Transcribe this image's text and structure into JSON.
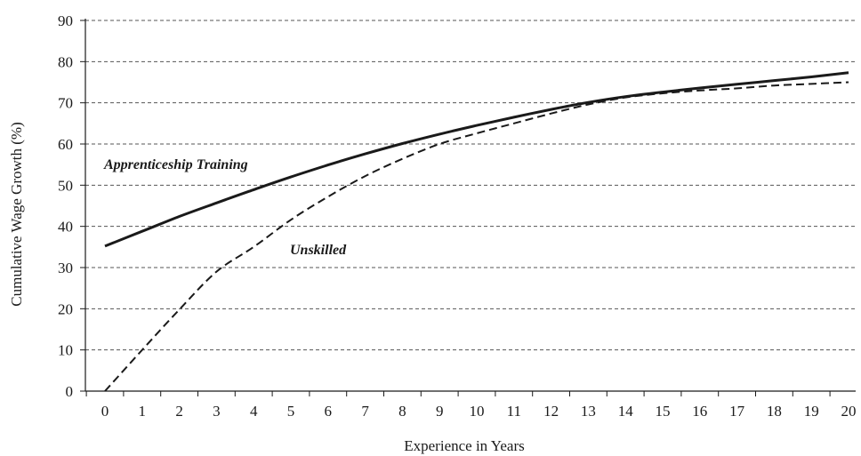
{
  "chart_data": {
    "type": "line",
    "xlabel": "Experience in Years",
    "ylabel": "Cumulative Wage Growth (%)",
    "xlim": [
      0,
      20
    ],
    "ylim": [
      0,
      90
    ],
    "grid": "horizontal dashed",
    "legend": "inline labels",
    "x_ticks": [
      "0",
      "1",
      "2",
      "3",
      "4",
      "5",
      "6",
      "7",
      "8",
      "9",
      "10",
      "11",
      "12",
      "13",
      "14",
      "15",
      "16",
      "17",
      "18",
      "19",
      "20"
    ],
    "y_ticks": [
      "0",
      "10",
      "20",
      "30",
      "40",
      "50",
      "60",
      "70",
      "80",
      "90"
    ],
    "x": [
      0,
      1,
      2,
      3,
      4,
      5,
      6,
      7,
      8,
      9,
      10,
      11,
      12,
      13,
      14,
      15,
      16,
      17,
      18,
      19,
      20
    ],
    "series": [
      {
        "name": "Apprenticeship Training",
        "style": "solid",
        "values": [
          35.2,
          38.8,
          42.4,
          45.7,
          48.9,
          52.0,
          54.9,
          57.6,
          60.1,
          62.4,
          64.5,
          66.5,
          68.4,
          70.1,
          71.5,
          72.6,
          73.6,
          74.5,
          75.4,
          76.3,
          77.3
        ]
      },
      {
        "name": "Unskilled",
        "style": "dashed",
        "values": [
          0.0,
          10.0,
          19.8,
          29.0,
          35.0,
          41.6,
          47.2,
          52.2,
          56.4,
          60.0,
          62.6,
          65.0,
          67.4,
          69.6,
          71.3,
          72.3,
          73.0,
          73.5,
          74.2,
          74.6,
          75.0
        ]
      }
    ],
    "annotations": [
      {
        "text": "Apprenticeship Training",
        "series": 0
      },
      {
        "text": "Unskilled",
        "series": 1
      }
    ]
  },
  "colors": {
    "line": "#1a1a1a",
    "grid": "#555555",
    "axis": "#1a1a1a"
  }
}
